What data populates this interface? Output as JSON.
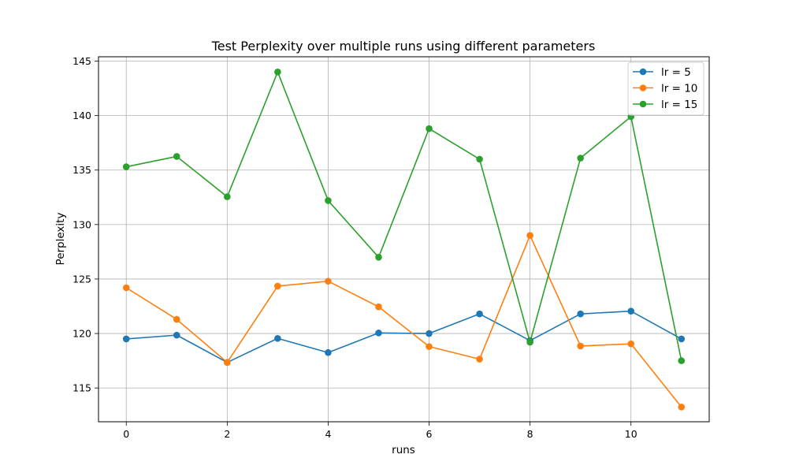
{
  "chart_data": {
    "type": "line",
    "title": "Test Perplexity over multiple runs using different parameters",
    "xlabel": "runs",
    "ylabel": "Perplexity",
    "x": [
      0,
      1,
      2,
      3,
      4,
      5,
      6,
      7,
      8,
      9,
      10,
      11
    ],
    "xlim": [
      -0.55,
      11.55
    ],
    "ylim": [
      111.9,
      145.4
    ],
    "xticks": [
      0,
      2,
      4,
      6,
      8,
      10
    ],
    "yticks": [
      115,
      120,
      125,
      130,
      135,
      140,
      145
    ],
    "grid": true,
    "legend_position": "top-right",
    "series": [
      {
        "name": "lr = 5",
        "color": "#1f77b4",
        "values": [
          119.5,
          119.85,
          117.35,
          119.55,
          118.25,
          120.05,
          120.0,
          121.8,
          119.35,
          121.8,
          122.05,
          119.5
        ]
      },
      {
        "name": "lr = 10",
        "color": "#ff7f0e",
        "values": [
          124.2,
          121.3,
          117.35,
          124.35,
          124.8,
          122.45,
          118.8,
          117.65,
          129.0,
          118.85,
          119.05,
          113.25
        ]
      },
      {
        "name": "lr = 15",
        "color": "#2ca02c",
        "values": [
          135.3,
          136.25,
          132.55,
          144.0,
          132.2,
          127.0,
          138.8,
          136.0,
          119.2,
          136.1,
          139.9,
          117.5
        ]
      }
    ]
  }
}
